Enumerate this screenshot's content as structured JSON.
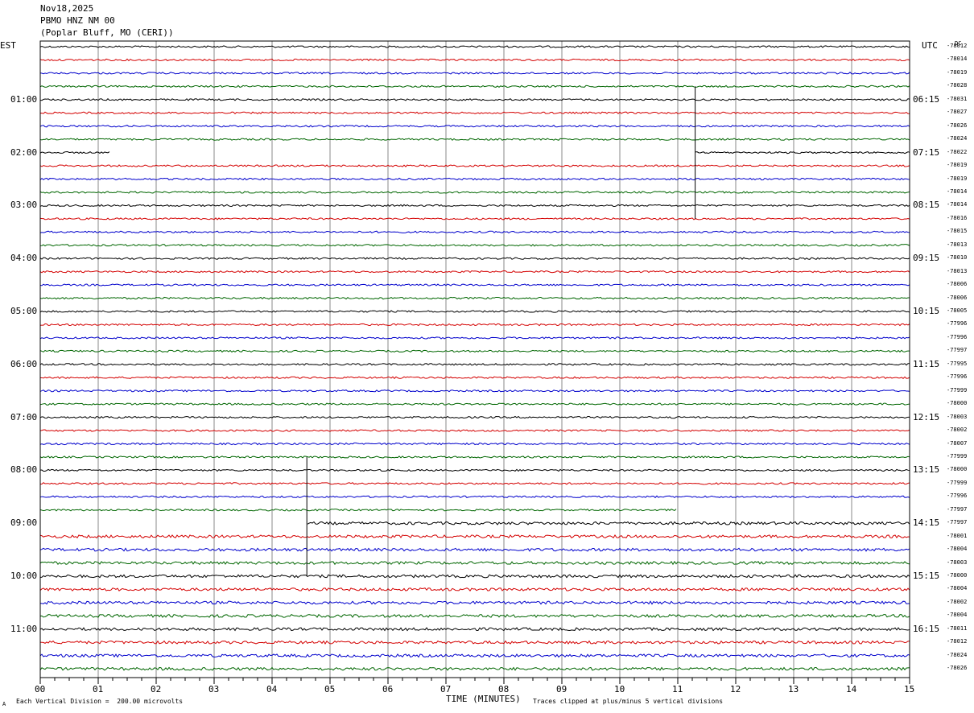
{
  "header": {
    "date": "Nov18,2025",
    "station": "PBMO HNZ NM 00",
    "location": "(Poplar Bluff, MO (CERI))"
  },
  "left_axis_title": "EST",
  "right_axis_title": "UTC",
  "dc_header": "DC",
  "footer": {
    "scale_note": "Each Vertical Division =  200.00 microvolts",
    "xlabel": "TIME (MINUTES)",
    "clip_note": "Traces clipped at plus/minus 5 vertical divisions",
    "corner_mark": "A"
  },
  "colors": {
    "trace_cycle": [
      "#000000",
      "#d40000",
      "#0000cc",
      "#006600"
    ],
    "grid": "#888888",
    "frame": "#000000"
  },
  "chart_data": {
    "type": "line",
    "title": "",
    "xlabel": "TIME (MINUTES)",
    "xlim": [
      0,
      15
    ],
    "x_ticks": [
      "00",
      "01",
      "02",
      "03",
      "04",
      "05",
      "06",
      "07",
      "08",
      "09",
      "10",
      "11",
      "12",
      "13",
      "14",
      "15"
    ],
    "grid": "vertical lines at each minute",
    "trace_count": 48,
    "minutes_per_trace": 15,
    "est_labels": [
      {
        "trace": 4,
        "label": "01:00"
      },
      {
        "trace": 8,
        "label": "02:00"
      },
      {
        "trace": 12,
        "label": "03:00"
      },
      {
        "trace": 16,
        "label": "04:00"
      },
      {
        "trace": 20,
        "label": "05:00"
      },
      {
        "trace": 24,
        "label": "06:00"
      },
      {
        "trace": 28,
        "label": "07:00"
      },
      {
        "trace": 32,
        "label": "08:00"
      },
      {
        "trace": 36,
        "label": "09:00"
      },
      {
        "trace": 40,
        "label": "10:00"
      },
      {
        "trace": 44,
        "label": "11:00"
      }
    ],
    "utc_labels": [
      {
        "trace": 4,
        "label": "06:15"
      },
      {
        "trace": 8,
        "label": "07:15"
      },
      {
        "trace": 12,
        "label": "08:15"
      },
      {
        "trace": 16,
        "label": "09:15"
      },
      {
        "trace": 20,
        "label": "10:15"
      },
      {
        "trace": 24,
        "label": "11:15"
      },
      {
        "trace": 28,
        "label": "12:15"
      },
      {
        "trace": 32,
        "label": "13:15"
      },
      {
        "trace": 36,
        "label": "14:15"
      },
      {
        "trace": 40,
        "label": "15:15"
      },
      {
        "trace": 44,
        "label": "16:15"
      }
    ],
    "dc_offsets": [
      "-78012",
      "-78014",
      "-78019",
      "-78028",
      "-78031",
      "-78027",
      "-78026",
      "-78024",
      "-78022",
      "-78019",
      "-78019",
      "-78014",
      "-78014",
      "-78016",
      "-78015",
      "-78013",
      "-78010",
      "-78013",
      "-78006",
      "-78006",
      "-78005",
      "-77996",
      "-77996",
      "-77997",
      "-77995",
      "-77996",
      "-77999",
      "-78000",
      "-78003",
      "-78002",
      "-78007",
      "-77999",
      "-78000",
      "-77999",
      "-77996",
      "-77997",
      "-77997",
      "-78001",
      "-78004",
      "-78003",
      "-78000",
      "-78004",
      "-78002",
      "-78004",
      "-78011",
      "-78012",
      "-78024",
      "-78026"
    ],
    "gaps": [
      {
        "trace": 8,
        "from_min": 1.2,
        "to_min": 11.3
      },
      {
        "trace": 35,
        "from_min": 11.0,
        "to_min": 15.0
      },
      {
        "trace": 36,
        "from_min": 0.0,
        "to_min": 4.6
      }
    ],
    "step_spikes": [
      {
        "from_trace": 3,
        "to_trace": 13,
        "at_min": 11.3
      },
      {
        "from_trace": 31,
        "to_trace": 40,
        "at_min": 4.6
      }
    ]
  }
}
